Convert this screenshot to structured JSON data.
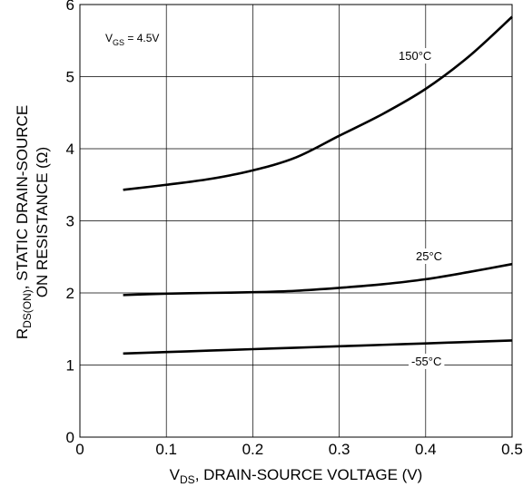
{
  "chart_data": {
    "type": "line",
    "xlabel": {
      "main": "V",
      "sub": "DS",
      "rest": ", DRAIN-SOURCE VOLTAGE (V)"
    },
    "ylabel_line1": {
      "main": "R",
      "sub": "DS(ON)",
      "rest": ", STATIC DRAIN-SOURCE"
    },
    "ylabel_line2": "ON RESISTANCE (Ω)",
    "xlim": [
      0,
      0.5
    ],
    "ylim": [
      0,
      6
    ],
    "x_ticks": [
      "0",
      "0.1",
      "0.2",
      "0.3",
      "0.4",
      "0.5"
    ],
    "y_ticks": [
      "0",
      "1",
      "2",
      "3",
      "4",
      "5",
      "6"
    ],
    "grid": true,
    "condition": {
      "main": "V",
      "sub": "GS",
      "rest": " = 4.5V"
    },
    "series": [
      {
        "name": "150°C",
        "x": [
          0.05,
          0.1,
          0.15,
          0.2,
          0.25,
          0.3,
          0.35,
          0.4,
          0.45,
          0.5
        ],
        "y": [
          3.43,
          3.5,
          3.58,
          3.7,
          3.88,
          4.18,
          4.48,
          4.83,
          5.28,
          5.83
        ]
      },
      {
        "name": "25°C",
        "x": [
          0.05,
          0.1,
          0.15,
          0.2,
          0.25,
          0.3,
          0.35,
          0.4,
          0.45,
          0.5
        ],
        "y": [
          1.97,
          1.99,
          2.0,
          2.01,
          2.03,
          2.07,
          2.12,
          2.19,
          2.29,
          2.4
        ]
      },
      {
        "name": "-55°C",
        "x": [
          0.05,
          0.1,
          0.15,
          0.2,
          0.25,
          0.3,
          0.35,
          0.4,
          0.45,
          0.5
        ],
        "y": [
          1.16,
          1.18,
          1.2,
          1.22,
          1.24,
          1.26,
          1.28,
          1.3,
          1.32,
          1.34
        ]
      }
    ]
  }
}
